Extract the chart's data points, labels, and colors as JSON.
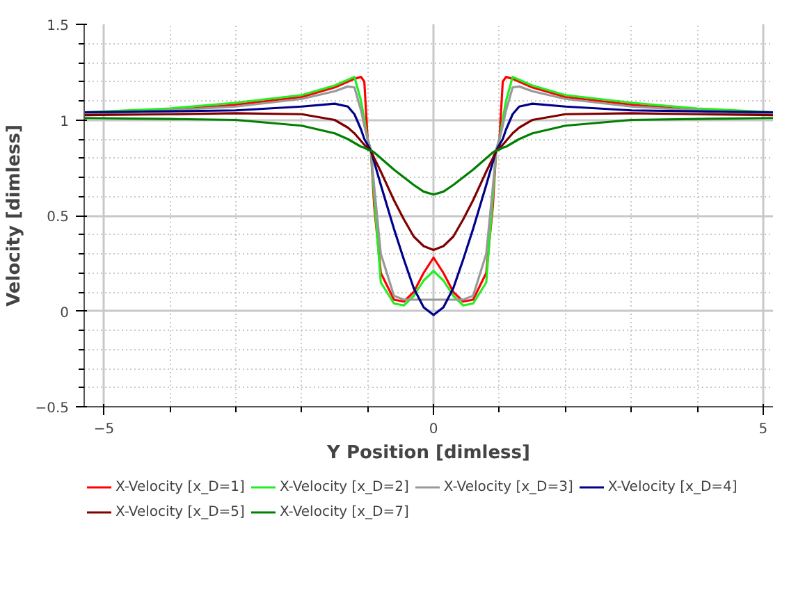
{
  "chart_data": {
    "type": "line",
    "xlabel": "Y Position [dimless]",
    "ylabel": "Velocity [dimless]",
    "x": [
      -5.3,
      -4,
      -3,
      -2,
      -1.5,
      -1.3,
      -1.2,
      -1.1,
      -1.05,
      -1,
      -0.95,
      -0.9,
      -0.8,
      -0.6,
      -0.45,
      -0.3,
      -0.15,
      0,
      0.15,
      0.3,
      0.45,
      0.6,
      0.8,
      0.9,
      0.95,
      1,
      1.05,
      1.1,
      1.2,
      1.3,
      1.5,
      2,
      3,
      4,
      5.15
    ],
    "xlim": [
      -5.3,
      5.15
    ],
    "ylim": [
      -0.5,
      1.5
    ],
    "xticks": [
      -5,
      0,
      5
    ],
    "yticks": [
      -0.5,
      0,
      0.5,
      1,
      1.5
    ],
    "grid": true,
    "legend": "bottom",
    "marker": "none",
    "line_style": "solid",
    "series": [
      {
        "name": "X-Velocity [x_D=1]",
        "color": "#ff0000",
        "values": [
          1.035,
          1.05,
          1.08,
          1.12,
          1.17,
          1.2,
          1.215,
          1.225,
          1.2,
          0.9,
          0.84,
          0.55,
          0.2,
          0.06,
          0.05,
          0.1,
          0.2,
          0.28,
          0.2,
          0.1,
          0.05,
          0.06,
          0.2,
          0.55,
          0.84,
          0.9,
          1.2,
          1.225,
          1.215,
          1.2,
          1.17,
          1.12,
          1.08,
          1.05,
          1.035
        ]
      },
      {
        "name": "X-Velocity [x_D=2]",
        "color": "#22ee22",
        "values": [
          1.04,
          1.06,
          1.09,
          1.13,
          1.18,
          1.21,
          1.225,
          1.1,
          1.0,
          0.9,
          0.84,
          0.6,
          0.15,
          0.04,
          0.03,
          0.08,
          0.16,
          0.21,
          0.16,
          0.08,
          0.03,
          0.04,
          0.15,
          0.6,
          0.84,
          0.9,
          1.0,
          1.1,
          1.225,
          1.21,
          1.18,
          1.13,
          1.09,
          1.06,
          1.04
        ]
      },
      {
        "name": "X-Velocity [x_D=3]",
        "color": "#999999",
        "values": [
          1.03,
          1.05,
          1.07,
          1.11,
          1.15,
          1.175,
          1.17,
          1.05,
          0.97,
          0.9,
          0.84,
          0.65,
          0.3,
          0.08,
          0.06,
          0.06,
          0.06,
          0.06,
          0.06,
          0.06,
          0.06,
          0.08,
          0.3,
          0.65,
          0.84,
          0.9,
          0.97,
          1.05,
          1.17,
          1.175,
          1.15,
          1.11,
          1.07,
          1.05,
          1.03
        ]
      },
      {
        "name": "X-Velocity [x_D=4]",
        "color": "#00008b",
        "values": [
          1.04,
          1.045,
          1.05,
          1.07,
          1.085,
          1.07,
          1.03,
          0.95,
          0.9,
          0.87,
          0.84,
          0.78,
          0.66,
          0.43,
          0.27,
          0.12,
          0.02,
          -0.02,
          0.02,
          0.12,
          0.27,
          0.43,
          0.66,
          0.78,
          0.84,
          0.87,
          0.9,
          0.95,
          1.03,
          1.07,
          1.085,
          1.07,
          1.05,
          1.045,
          1.04
        ]
      },
      {
        "name": "X-Velocity [x_D=5]",
        "color": "#800000",
        "values": [
          1.025,
          1.03,
          1.035,
          1.03,
          1.0,
          0.96,
          0.93,
          0.89,
          0.87,
          0.855,
          0.84,
          0.8,
          0.73,
          0.58,
          0.48,
          0.39,
          0.34,
          0.32,
          0.34,
          0.39,
          0.48,
          0.58,
          0.73,
          0.8,
          0.84,
          0.855,
          0.87,
          0.89,
          0.93,
          0.96,
          1.0,
          1.03,
          1.035,
          1.03,
          1.025
        ]
      },
      {
        "name": "X-Velocity [x_D=7]",
        "color": "#008000",
        "values": [
          1.01,
          1.005,
          1.0,
          0.97,
          0.93,
          0.9,
          0.88,
          0.86,
          0.855,
          0.845,
          0.84,
          0.83,
          0.8,
          0.74,
          0.7,
          0.66,
          0.625,
          0.61,
          0.625,
          0.66,
          0.7,
          0.74,
          0.8,
          0.83,
          0.84,
          0.845,
          0.855,
          0.86,
          0.88,
          0.9,
          0.93,
          0.97,
          1.0,
          1.005,
          1.01
        ]
      }
    ]
  }
}
